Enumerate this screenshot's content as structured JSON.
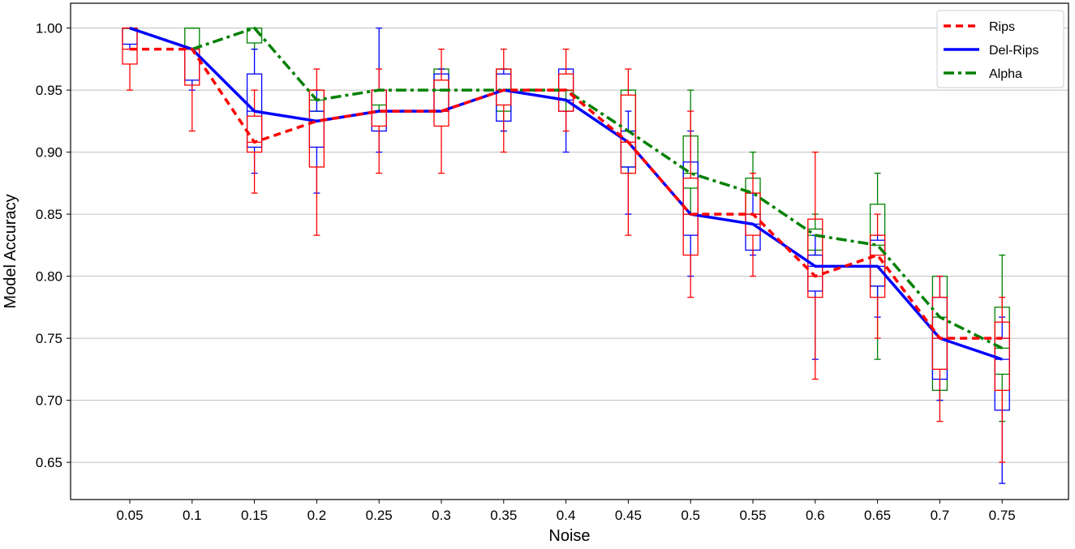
{
  "chart_data": {
    "type": "line",
    "title": "",
    "xlabel": "Noise",
    "ylabel": "Model Accuracy",
    "ylim": [
      0.62,
      1.02
    ],
    "yticks": [
      "0.65",
      "0.70",
      "0.75",
      "0.80",
      "0.85",
      "0.90",
      "0.95",
      "1.00"
    ],
    "categories": [
      "0.05",
      "0.1",
      "0.15",
      "0.2",
      "0.25",
      "0.3",
      "0.35",
      "0.4",
      "0.45",
      "0.5",
      "0.55",
      "0.6",
      "0.65",
      "0.7",
      "0.75"
    ],
    "grid": "horizontal",
    "legend_position": "top-right",
    "series": [
      {
        "name": "Rips",
        "color": "#ff0000",
        "line_style": "dotted",
        "values": [
          0.983,
          0.983,
          0.908,
          0.925,
          0.933,
          0.933,
          0.95,
          0.95,
          0.908,
          0.85,
          0.85,
          0.8,
          0.817,
          0.75,
          0.75
        ],
        "boxes": [
          {
            "whisker_low": 0.95,
            "q1": 0.971,
            "median": 0.983,
            "q3": 1.0,
            "whisker_high": 1.0
          },
          {
            "whisker_low": 0.917,
            "q1": 0.954,
            "median": 0.983,
            "q3": 0.983,
            "whisker_high": 0.983
          },
          {
            "whisker_low": 0.867,
            "q1": 0.9,
            "median": 0.908,
            "q3": 0.929,
            "whisker_high": 0.95
          },
          {
            "whisker_low": 0.833,
            "q1": 0.888,
            "median": 0.925,
            "q3": 0.95,
            "whisker_high": 0.967
          },
          {
            "whisker_low": 0.883,
            "q1": 0.921,
            "median": 0.933,
            "q3": 0.95,
            "whisker_high": 0.967
          },
          {
            "whisker_low": 0.883,
            "q1": 0.921,
            "median": 0.933,
            "q3": 0.958,
            "whisker_high": 0.983
          },
          {
            "whisker_low": 0.9,
            "q1": 0.938,
            "median": 0.95,
            "q3": 0.967,
            "whisker_high": 0.983
          },
          {
            "whisker_low": 0.917,
            "q1": 0.933,
            "median": 0.95,
            "q3": 0.963,
            "whisker_high": 0.983
          },
          {
            "whisker_low": 0.833,
            "q1": 0.883,
            "median": 0.908,
            "q3": 0.946,
            "whisker_high": 0.967
          },
          {
            "whisker_low": 0.783,
            "q1": 0.817,
            "median": 0.85,
            "q3": 0.879,
            "whisker_high": 0.933
          },
          {
            "whisker_low": 0.8,
            "q1": 0.833,
            "median": 0.85,
            "q3": 0.867,
            "whisker_high": 0.883
          },
          {
            "whisker_low": 0.717,
            "q1": 0.783,
            "median": 0.8,
            "q3": 0.846,
            "whisker_high": 0.9
          },
          {
            "whisker_low": 0.75,
            "q1": 0.783,
            "median": 0.817,
            "q3": 0.833,
            "whisker_high": 0.85
          },
          {
            "whisker_low": 0.683,
            "q1": 0.725,
            "median": 0.75,
            "q3": 0.783,
            "whisker_high": 0.8
          },
          {
            "whisker_low": 0.65,
            "q1": 0.708,
            "median": 0.75,
            "q3": 0.763,
            "whisker_high": 0.783
          }
        ]
      },
      {
        "name": "Del-Rips",
        "color": "#0000ff",
        "line_style": "solid",
        "values": [
          1.0,
          0.983,
          0.933,
          0.925,
          0.933,
          0.933,
          0.95,
          0.942,
          0.908,
          0.85,
          0.842,
          0.808,
          0.808,
          0.75,
          0.733
        ],
        "boxes": [
          {
            "whisker_low": 0.983,
            "q1": 0.987,
            "median": 1.0,
            "q3": 1.0,
            "whisker_high": 1.0
          },
          {
            "whisker_low": 0.95,
            "q1": 0.958,
            "median": 0.983,
            "q3": 0.983,
            "whisker_high": 0.983
          },
          {
            "whisker_low": 0.883,
            "q1": 0.904,
            "median": 0.933,
            "q3": 0.963,
            "whisker_high": 0.983
          },
          {
            "whisker_low": 0.867,
            "q1": 0.904,
            "median": 0.925,
            "q3": 0.933,
            "whisker_high": 0.95
          },
          {
            "whisker_low": 0.9,
            "q1": 0.917,
            "median": 0.933,
            "q3": 0.95,
            "whisker_high": 1.0
          },
          {
            "whisker_low": 0.933,
            "q1": 0.933,
            "median": 0.933,
            "q3": 0.963,
            "whisker_high": 0.967
          },
          {
            "whisker_low": 0.917,
            "q1": 0.925,
            "median": 0.95,
            "q3": 0.963,
            "whisker_high": 0.967
          },
          {
            "whisker_low": 0.9,
            "q1": 0.933,
            "median": 0.942,
            "q3": 0.967,
            "whisker_high": 0.967
          },
          {
            "whisker_low": 0.85,
            "q1": 0.888,
            "median": 0.908,
            "q3": 0.917,
            "whisker_high": 0.933
          },
          {
            "whisker_low": 0.8,
            "q1": 0.833,
            "median": 0.85,
            "q3": 0.892,
            "whisker_high": 0.917
          },
          {
            "whisker_low": 0.817,
            "q1": 0.821,
            "median": 0.842,
            "q3": 0.85,
            "whisker_high": 0.867
          },
          {
            "whisker_low": 0.733,
            "q1": 0.788,
            "median": 0.808,
            "q3": 0.817,
            "whisker_high": 0.833
          },
          {
            "whisker_low": 0.767,
            "q1": 0.792,
            "median": 0.808,
            "q3": 0.829,
            "whisker_high": 0.833
          },
          {
            "whisker_low": 0.7,
            "q1": 0.717,
            "median": 0.75,
            "q3": 0.783,
            "whisker_high": 0.8
          },
          {
            "whisker_low": 0.633,
            "q1": 0.692,
            "median": 0.733,
            "q3": 0.75,
            "whisker_high": 0.767
          }
        ]
      },
      {
        "name": "Alpha",
        "color": "#008000",
        "line_style": "dashdot",
        "values": [
          1.0,
          0.983,
          1.0,
          0.942,
          0.95,
          0.95,
          0.95,
          0.95,
          0.917,
          0.883,
          0.867,
          0.833,
          0.825,
          0.767,
          0.742
        ],
        "boxes": [
          {
            "whisker_low": 1.0,
            "q1": 1.0,
            "median": 1.0,
            "q3": 1.0,
            "whisker_high": 1.0
          },
          {
            "whisker_low": 0.983,
            "q1": 0.983,
            "median": 1.0,
            "q3": 1.0,
            "whisker_high": 1.0
          },
          {
            "whisker_low": 0.983,
            "q1": 0.988,
            "median": 1.0,
            "q3": 1.0,
            "whisker_high": 1.0
          },
          {
            "whisker_low": 0.933,
            "q1": 0.933,
            "median": 0.942,
            "q3": 0.95,
            "whisker_high": 0.95
          },
          {
            "whisker_low": 0.933,
            "q1": 0.938,
            "median": 0.95,
            "q3": 0.95,
            "whisker_high": 0.95
          },
          {
            "whisker_low": 0.95,
            "q1": 0.95,
            "median": 0.95,
            "q3": 0.967,
            "whisker_high": 0.967
          },
          {
            "whisker_low": 0.917,
            "q1": 0.933,
            "median": 0.95,
            "q3": 0.967,
            "whisker_high": 0.967
          },
          {
            "whisker_low": 0.933,
            "q1": 0.95,
            "median": 0.95,
            "q3": 0.95,
            "whisker_high": 0.95
          },
          {
            "whisker_low": 0.883,
            "q1": 0.888,
            "median": 0.917,
            "q3": 0.95,
            "whisker_high": 0.95
          },
          {
            "whisker_low": 0.85,
            "q1": 0.871,
            "median": 0.883,
            "q3": 0.913,
            "whisker_high": 0.95
          },
          {
            "whisker_low": 0.85,
            "q1": 0.85,
            "median": 0.867,
            "q3": 0.879,
            "whisker_high": 0.9
          },
          {
            "whisker_low": 0.817,
            "q1": 0.821,
            "median": 0.833,
            "q3": 0.838,
            "whisker_high": 0.85
          },
          {
            "whisker_low": 0.733,
            "q1": 0.792,
            "median": 0.825,
            "q3": 0.858,
            "whisker_high": 0.883
          },
          {
            "whisker_low": 0.7,
            "q1": 0.708,
            "median": 0.767,
            "q3": 0.8,
            "whisker_high": 0.8
          },
          {
            "whisker_low": 0.683,
            "q1": 0.721,
            "median": 0.742,
            "q3": 0.775,
            "whisker_high": 0.817
          }
        ]
      }
    ]
  }
}
